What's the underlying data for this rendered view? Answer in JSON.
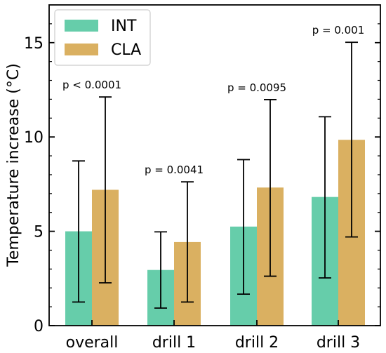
{
  "chart_data": {
    "type": "bar",
    "title": "",
    "xlabel": "",
    "ylabel": "Temperature increase (°C)",
    "ylim": [
      0,
      17
    ],
    "yticks": [
      0,
      5,
      10,
      15
    ],
    "categories": [
      "overall",
      "drill 1",
      "drill 2",
      "drill 3"
    ],
    "series": [
      {
        "name": "INT",
        "color": "#66CDAA",
        "values": [
          5.0,
          2.95,
          5.25,
          6.82
        ],
        "error_low": [
          1.25,
          0.93,
          1.67,
          2.53
        ],
        "error_high": [
          8.73,
          4.97,
          8.8,
          11.07
        ]
      },
      {
        "name": "CLA",
        "color": "#DAB061",
        "values": [
          7.2,
          4.43,
          7.32,
          9.85
        ],
        "error_low": [
          2.27,
          1.25,
          2.62,
          4.7
        ],
        "error_high": [
          12.12,
          7.62,
          11.98,
          15.02
        ]
      }
    ],
    "annotations": [
      "p < 0.0001",
      "p = 0.0041",
      "p = 0.0095",
      "p = 0.001"
    ],
    "legend_position": "top-left",
    "grid": false
  }
}
